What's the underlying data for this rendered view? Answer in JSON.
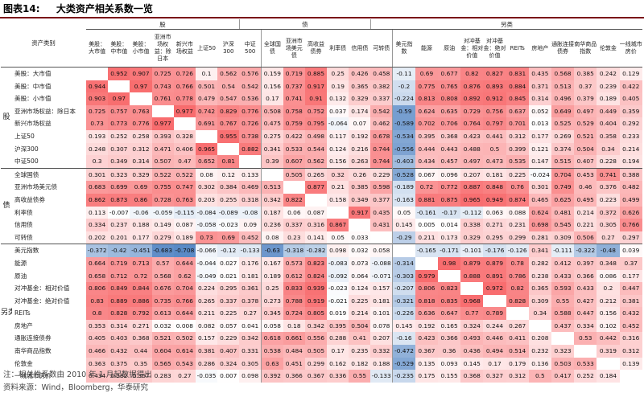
{
  "figure": {
    "number": "图表14:",
    "title": "大类资产相关系数一览"
  },
  "header": {
    "corner": "资产类别",
    "groups": [
      {
        "label": "股",
        "span": 7
      },
      {
        "label": "债",
        "span": 6
      },
      {
        "label": "另类",
        "span": 12
      }
    ],
    "columns": [
      "美股：大市值",
      "美股：中市值",
      "美股：小市值",
      "亚洲市场权益：除日本",
      "新兴市场权益",
      "上证50",
      "沪深300",
      "中证500",
      "全球国债",
      "亚洲市场美元债",
      "高收益债券",
      "利率债",
      "信用债",
      "可转债",
      "美元指数",
      "能源",
      "原油",
      "对冲基金：相对价值",
      "对冲基金：绝对价值",
      "REITs",
      "房地产",
      "通胀连接债券",
      "南华商品指数",
      "伦敦金",
      "一线城市房价"
    ]
  },
  "group_labels": {
    "stock": "股",
    "bond": "债",
    "alt": "另类"
  },
  "rows": [
    {
      "label": "美股：大市值",
      "values": [
        "",
        "0.952",
        "0.907",
        "0.725",
        "0.726",
        "0.1",
        "0.562",
        "0.576",
        "0.159",
        "0.719",
        "0.885",
        "0.25",
        "0.426",
        "0.458",
        "-0.11",
        "0.69",
        "0.677",
        "0.82",
        "0.827",
        "0.831",
        "0.435",
        "0.568",
        "0.385",
        "0.242",
        "0.129"
      ]
    },
    {
      "label": "美股：中市值",
      "values": [
        "0.944",
        "",
        "0.97",
        "0.743",
        "0.766",
        "0.501",
        "0.54",
        "0.542",
        "0.156",
        "0.737",
        "0.917",
        "0.19",
        "0.365",
        "0.382",
        "-0.2",
        "0.775",
        "0.765",
        "0.876",
        "0.893",
        "0.884",
        "0.371",
        "0.513",
        "0.37",
        "0.239",
        "0.422"
      ]
    },
    {
      "label": "美股：小市值",
      "values": [
        "0.903",
        "0.97",
        "",
        "0.761",
        "0.778",
        "0.479",
        "0.547",
        "0.536",
        "0.17",
        "0.741",
        "0.91",
        "0.132",
        "0.329",
        "0.337",
        "-0.224",
        "0.813",
        "0.808",
        "0.892",
        "0.912",
        "0.845",
        "0.314",
        "0.496",
        "0.379",
        "0.189",
        "0.405"
      ]
    },
    {
      "label": "亚洲市场权益：除日本",
      "values": [
        "0.725",
        "0.757",
        "0.763",
        "",
        "0.977",
        "0.742",
        "0.829",
        "0.776",
        "0.508",
        "0.758",
        "0.752",
        "0.037",
        "0.174",
        "0.542",
        "-0.59",
        "0.624",
        "0.635",
        "0.729",
        "0.756",
        "0.637",
        "0.052",
        "0.649",
        "0.497",
        "0.449",
        "0.359"
      ]
    },
    {
      "label": "新兴市场权益",
      "values": [
        "0.73",
        "0.773",
        "0.776",
        "0.977",
        "",
        "0.691",
        "0.767",
        "0.726",
        "0.475",
        "0.759",
        "0.795",
        "-0.064",
        "0.07",
        "0.462",
        "-0.589",
        "0.702",
        "0.706",
        "0.764",
        "0.797",
        "0.701",
        "0.013",
        "0.525",
        "0.529",
        "0.404",
        "0.292"
      ]
    },
    {
      "label": "上证50",
      "values": [
        "0.193",
        "0.252",
        "0.258",
        "0.393",
        "0.328",
        "",
        "0.955",
        "0.738",
        "0.275",
        "0.422",
        "0.498",
        "0.117",
        "0.192",
        "0.678",
        "-0.534",
        "0.395",
        "0.368",
        "0.423",
        "0.441",
        "0.312",
        "0.177",
        "0.269",
        "0.521",
        "0.358",
        "0.233"
      ]
    },
    {
      "label": "沪深300",
      "values": [
        "0.248",
        "0.307",
        "0.312",
        "0.471",
        "0.406",
        "0.965",
        "",
        "0.882",
        "0.341",
        "0.533",
        "0.544",
        "0.124",
        "0.216",
        "0.744",
        "-0.556",
        "0.444",
        "0.443",
        "0.488",
        "0.5",
        "0.399",
        "0.121",
        "0.374",
        "0.504",
        "0.34",
        "0.214"
      ]
    },
    {
      "label": "中证500",
      "values": [
        "0.3",
        "0.349",
        "0.314",
        "0.507",
        "0.47",
        "0.652",
        "0.81",
        "",
        "0.39",
        "0.607",
        "0.562",
        "0.156",
        "0.263",
        "0.744",
        "-0.403",
        "0.434",
        "0.457",
        "0.497",
        "0.473",
        "0.535",
        "0.147",
        "0.515",
        "0.407",
        "0.228",
        "0.194"
      ]
    },
    {
      "label": "全球国债",
      "values": [
        "0.301",
        "0.323",
        "0.329",
        "0.522",
        "0.522",
        "0.08",
        "0.12",
        "0.133",
        "",
        "0.505",
        "0.265",
        "0.32",
        "0.26",
        "0.229",
        "-0.528",
        "0.067",
        "0.096",
        "0.207",
        "0.181",
        "0.225",
        "-0.024",
        "0.704",
        "0.453",
        "0.741",
        "0.388"
      ]
    },
    {
      "label": "亚洲市场美元债",
      "values": [
        "0.683",
        "0.699",
        "0.69",
        "0.755",
        "0.747",
        "0.302",
        "0.384",
        "0.469",
        "0.513",
        "",
        "0.877",
        "0.21",
        "0.385",
        "0.598",
        "-0.189",
        "0.72",
        "0.772",
        "0.887",
        "0.848",
        "0.76",
        "0.301",
        "0.749",
        "0.46",
        "0.376",
        "0.482"
      ]
    },
    {
      "label": "高收益债券",
      "values": [
        "0.862",
        "0.873",
        "0.86",
        "0.728",
        "0.763",
        "0.203",
        "0.255",
        "0.318",
        "0.342",
        "0.822",
        "",
        "0.158",
        "0.349",
        "0.377",
        "-0.163",
        "0.881",
        "0.875",
        "0.965",
        "0.949",
        "0.874",
        "0.465",
        "0.625",
        "0.495",
        "0.223",
        "0.499"
      ]
    },
    {
      "label": "利率债",
      "values": [
        "0.113",
        "-0.007",
        "-0.06",
        "-0.059",
        "-0.115",
        "-0.084",
        "-0.089",
        "-0.08",
        "0.187",
        "0.06",
        "0.087",
        "",
        "0.917",
        "0.435",
        "0.05",
        "-0.161",
        "-0.17",
        "-0.112",
        "0.063",
        "0.088",
        "0.624",
        "0.481",
        "0.214",
        "0.372",
        "0.626"
      ]
    },
    {
      "label": "信用债",
      "values": [
        "0.334",
        "0.237",
        "0.188",
        "0.149",
        "0.087",
        "-0.058",
        "-0.023",
        "0.09",
        "0.236",
        "0.337",
        "0.316",
        "0.867",
        "",
        "0.431",
        "0.145",
        "0.005",
        "0.014",
        "0.338",
        "0.271",
        "0.231",
        "0.698",
        "0.545",
        "0.221",
        "0.305",
        "0.766"
      ]
    },
    {
      "label": "可转债",
      "values": [
        "0.202",
        "0.201",
        "0.177",
        "0.279",
        "0.189",
        "0.73",
        "0.69",
        "0.452",
        "0.08",
        "0.23",
        "0.141",
        "0.05",
        "0.033",
        "",
        "-0.29",
        "0.211",
        "0.173",
        "0.329",
        "0.295",
        "0.299",
        "0.281",
        "0.309",
        "0.506",
        "0.27",
        "0.297"
      ]
    },
    {
      "label": "美元指数",
      "values": [
        "-0.372",
        "-0.42",
        "-0.451",
        "-0.683",
        "-0.708",
        "-0.066",
        "-0.12",
        "-0.133",
        "-0.63",
        "-0.318",
        "-0.282",
        "0.098",
        "0.032",
        "0.058",
        "",
        "-0.165",
        "-0.171",
        "-0.101",
        "-0.176",
        "-0.126",
        "0.341",
        "-0.111",
        "-0.322",
        "-0.48",
        "0.039"
      ]
    },
    {
      "label": "能源",
      "values": [
        "0.664",
        "0.719",
        "0.713",
        "0.57",
        "0.644",
        "-0.044",
        "0.027",
        "0.176",
        "0.167",
        "0.573",
        "0.823",
        "-0.083",
        "0.073",
        "-0.088",
        "-0.314",
        "",
        "0.98",
        "0.879",
        "0.879",
        "0.78",
        "0.282",
        "0.412",
        "0.397",
        "0.348",
        "0.37"
      ]
    },
    {
      "label": "原油",
      "values": [
        "0.658",
        "0.712",
        "0.72",
        "0.568",
        "0.62",
        "-0.049",
        "0.021",
        "0.181",
        "0.189",
        "0.612",
        "0.824",
        "-0.092",
        "0.064",
        "-0.071",
        "-0.303",
        "0.979",
        "",
        "0.888",
        "0.891",
        "0.786",
        "0.238",
        "0.433",
        "0.366",
        "0.086",
        "0.177"
      ]
    },
    {
      "label": "对冲基金：相对价值",
      "values": [
        "0.806",
        "0.849",
        "0.844",
        "0.676",
        "0.704",
        "0.224",
        "0.295",
        "0.361",
        "0.25",
        "0.833",
        "0.939",
        "-0.023",
        "0.124",
        "0.157",
        "-0.207",
        "0.806",
        "0.823",
        "",
        "0.972",
        "0.82",
        "0.365",
        "0.593",
        "0.433",
        "0.2",
        "0.447"
      ]
    },
    {
      "label": "对冲基金：绝对价值",
      "values": [
        "0.83",
        "0.889",
        "0.886",
        "0.735",
        "0.766",
        "0.265",
        "0.337",
        "0.378",
        "0.273",
        "0.788",
        "0.919",
        "-0.021",
        "0.225",
        "0.181",
        "-0.321",
        "0.818",
        "0.835",
        "0.968",
        "",
        "0.828",
        "0.309",
        "0.55",
        "0.427",
        "0.212",
        "0.381"
      ]
    },
    {
      "label": "REITs",
      "values": [
        "0.8",
        "0.828",
        "0.792",
        "0.613",
        "0.644",
        "0.211",
        "0.225",
        "0.27",
        "0.345",
        "0.724",
        "0.805",
        "0.019",
        "0.214",
        "0.101",
        "-0.226",
        "0.636",
        "0.647",
        "0.77",
        "0.789",
        "",
        "0.34",
        "0.588",
        "0.447",
        "0.156",
        "0.432"
      ]
    },
    {
      "label": "房地产",
      "values": [
        "0.353",
        "0.314",
        "0.271",
        "0.032",
        "0.008",
        "0.082",
        "0.057",
        "0.041",
        "0.058",
        "0.18",
        "0.342",
        "0.395",
        "0.504",
        "0.078",
        "0.145",
        "0.192",
        "0.165",
        "0.324",
        "0.244",
        "0.267",
        "",
        "0.437",
        "0.334",
        "0.102",
        "0.452"
      ]
    },
    {
      "label": "通胀连接债券",
      "values": [
        "0.405",
        "0.403",
        "0.368",
        "0.521",
        "0.502",
        "0.157",
        "0.229",
        "0.342",
        "0.618",
        "0.661",
        "0.556",
        "0.288",
        "0.41",
        "0.207",
        "-0.16",
        "0.423",
        "0.366",
        "0.493",
        "0.446",
        "0.411",
        "0.208",
        "",
        "0.53",
        "0.442",
        "0.316"
      ]
    },
    {
      "label": "南华商品指数",
      "values": [
        "0.466",
        "0.432",
        "0.44",
        "0.604",
        "0.614",
        "0.381",
        "0.407",
        "0.331",
        "0.538",
        "0.484",
        "0.505",
        "0.17",
        "0.235",
        "0.332",
        "-0.472",
        "0.367",
        "0.36",
        "0.436",
        "0.494",
        "0.514",
        "0.232",
        "0.323",
        "",
        "0.319",
        "0.312"
      ]
    },
    {
      "label": "伦敦金",
      "values": [
        "0.363",
        "0.375",
        "0.35",
        "0.565",
        "0.543",
        "0.286",
        "0.324",
        "0.305",
        "0.63",
        "0.451",
        "0.299",
        "0.162",
        "0.182",
        "0.188",
        "-0.529",
        "0.135",
        "0.093",
        "0.145",
        "0.17",
        "0.179",
        "0.136",
        "0.503",
        "0.533",
        "",
        "0.139"
      ]
    },
    {
      "label": "一线城市房价",
      "values": [
        "0.434",
        "0.382",
        "0.367",
        "0.283",
        "0.27",
        "-0.035",
        "0.007",
        "0.098",
        "0.392",
        "0.366",
        "0.367",
        "0.336",
        "0.55",
        "-0.133",
        "-0.235",
        "0.175",
        "0.155",
        "0.368",
        "0.327",
        "0.312",
        "0.5",
        "0.417",
        "0.252",
        "0.184",
        ""
      ]
    }
  ],
  "notes": {
    "note": "注：相关性系数由 2010 年 1 月起数据得出",
    "source": "资料来源：Wind，Bloomberg，华泰研究"
  },
  "colors": {
    "positive_max": "#f8696b",
    "negative_max": "#5a8ac6",
    "neutral": "#ffffff",
    "title_rule": "#7a0c18"
  }
}
